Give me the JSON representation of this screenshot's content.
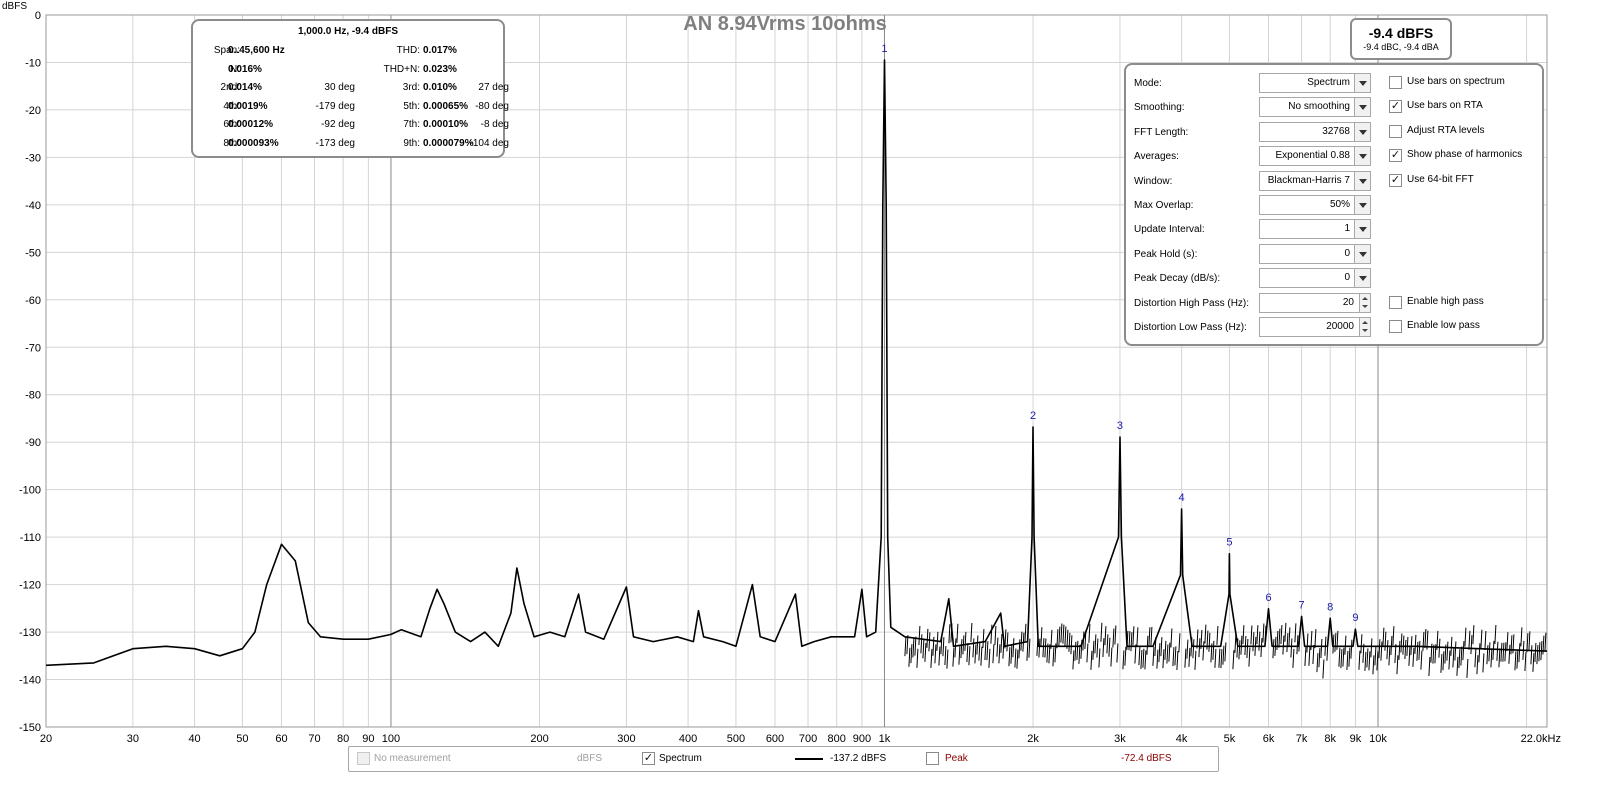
{
  "chart_title": "AN 8.94Vrms 10ohms",
  "info_box": {
    "header": "1,000.0 Hz, -9.4 dBFS",
    "rows": [
      [
        "Span:",
        "0..45,600 Hz",
        "",
        "THD:",
        "0.017%",
        ""
      ],
      [
        "N:",
        "0.016%",
        "",
        "THD+N:",
        "0.023%",
        ""
      ],
      [
        "2nd:",
        "0.014%",
        "30 deg",
        "3rd:",
        "0.010%",
        "27 deg"
      ],
      [
        "4th:",
        "0.0019%",
        "-179 deg",
        "5th:",
        "0.00065%",
        "-80 deg"
      ],
      [
        "6th:",
        "0.00012%",
        "-92 deg",
        "7th:",
        "0.00010%",
        "-8 deg"
      ],
      [
        "8th:",
        "0.000093%",
        "-173 deg",
        "9th:",
        "0.000079%",
        "-104 deg"
      ]
    ]
  },
  "level_box": {
    "main": "-9.4 dBFS",
    "sub": "-9.4 dBC, -9.4 dBA"
  },
  "settings": {
    "fields": [
      {
        "label": "Mode:",
        "value": "Spectrum",
        "kind": "combo"
      },
      {
        "label": "Smoothing:",
        "value": "No  smoothing",
        "kind": "combo"
      },
      {
        "label": "FFT Length:",
        "value": "32768",
        "kind": "combo"
      },
      {
        "label": "Averages:",
        "value": "Exponential 0.88",
        "kind": "combo"
      },
      {
        "label": "Window:",
        "value": "Blackman-Harris 7",
        "kind": "combo"
      },
      {
        "label": "Max Overlap:",
        "value": "50%",
        "kind": "combo"
      },
      {
        "label": "Update Interval:",
        "value": "1",
        "kind": "combo"
      },
      {
        "label": "Peak Hold (s):",
        "value": "0",
        "kind": "combo"
      },
      {
        "label": "Peak Decay (dB/s):",
        "value": "0",
        "kind": "combo"
      },
      {
        "label": "Distortion High Pass (Hz):",
        "value": "20",
        "kind": "spin"
      },
      {
        "label": "Distortion Low Pass (Hz):",
        "value": "20000",
        "kind": "spin"
      }
    ],
    "checkboxes": [
      {
        "label": "Use bars on spectrum",
        "checked": false,
        "slot": 0
      },
      {
        "label": "Use bars on RTA",
        "checked": true,
        "slot": 1
      },
      {
        "label": "Adjust RTA levels",
        "checked": false,
        "slot": 2
      },
      {
        "label": "Show phase of harmonics",
        "checked": true,
        "slot": 3
      },
      {
        "label": "Use 64-bit FFT",
        "checked": true,
        "slot": 4
      },
      {
        "label": "Enable high pass",
        "checked": false,
        "slot": 9
      },
      {
        "label": "Enable low pass",
        "checked": false,
        "slot": 10
      }
    ]
  },
  "legend": {
    "no_measurement": "No measurement",
    "no_measurement_unit": "dBFS",
    "spectrum_label": "Spectrum",
    "spectrum_checked": true,
    "spectrum_value": "-137.2 dBFS",
    "peak_label": "Peak",
    "peak_checked": false,
    "peak_value": "-72.4 dBFS",
    "peak_color": "#8b0000"
  },
  "chart_data": {
    "type": "line",
    "ylabel": "dBFS",
    "y_unit_label": "dBFS",
    "x_scale": "log",
    "xlim": [
      20,
      22000
    ],
    "ylim": [
      -150,
      0
    ],
    "y_ticks": [
      0,
      -10,
      -20,
      -30,
      -40,
      -50,
      -60,
      -70,
      -80,
      -90,
      -100,
      -110,
      -120,
      -130,
      -140,
      -150
    ],
    "x_ticks": [
      {
        "v": 20,
        "label": "20"
      },
      {
        "v": 30,
        "label": "30"
      },
      {
        "v": 40,
        "label": "40"
      },
      {
        "v": 50,
        "label": "50"
      },
      {
        "v": 60,
        "label": "60"
      },
      {
        "v": 70,
        "label": "70"
      },
      {
        "v": 80,
        "label": "80"
      },
      {
        "v": 90,
        "label": "90"
      },
      {
        "v": 100,
        "label": "100"
      },
      {
        "v": 200,
        "label": "200"
      },
      {
        "v": 300,
        "label": "300"
      },
      {
        "v": 400,
        "label": "400"
      },
      {
        "v": 500,
        "label": "500"
      },
      {
        "v": 600,
        "label": "600"
      },
      {
        "v": 700,
        "label": "700"
      },
      {
        "v": 800,
        "label": "800"
      },
      {
        "v": 900,
        "label": "900"
      },
      {
        "v": 1000,
        "label": "1k"
      },
      {
        "v": 2000,
        "label": "2k"
      },
      {
        "v": 3000,
        "label": "3k"
      },
      {
        "v": 4000,
        "label": "4k"
      },
      {
        "v": 5000,
        "label": "5k"
      },
      {
        "v": 6000,
        "label": "6k"
      },
      {
        "v": 7000,
        "label": "7k"
      },
      {
        "v": 8000,
        "label": "8k"
      },
      {
        "v": 9000,
        "label": "9k"
      },
      {
        "v": 10000,
        "label": "10k"
      },
      {
        "v": 22000,
        "label": "22.0kHz"
      }
    ],
    "grid": true,
    "series": [
      {
        "color": "#000000",
        "points": [
          [
            20,
            -137
          ],
          [
            25,
            -136.5
          ],
          [
            30,
            -133.5
          ],
          [
            35,
            -133
          ],
          [
            40,
            -133.5
          ],
          [
            45,
            -135
          ],
          [
            50,
            -133.5
          ],
          [
            53,
            -130
          ],
          [
            56,
            -120
          ],
          [
            60,
            -111.5
          ],
          [
            64,
            -115
          ],
          [
            68,
            -128
          ],
          [
            72,
            -131
          ],
          [
            80,
            -131.5
          ],
          [
            90,
            -131.5
          ],
          [
            100,
            -130.5
          ],
          [
            105,
            -129.5
          ],
          [
            115,
            -131
          ],
          [
            120,
            -125
          ],
          [
            124,
            -121
          ],
          [
            128,
            -124
          ],
          [
            135,
            -130
          ],
          [
            145,
            -132
          ],
          [
            155,
            -130
          ],
          [
            165,
            -133
          ],
          [
            175,
            -126
          ],
          [
            180,
            -116.5
          ],
          [
            186,
            -124
          ],
          [
            195,
            -131
          ],
          [
            210,
            -130
          ],
          [
            225,
            -131
          ],
          [
            240,
            -122
          ],
          [
            248,
            -130
          ],
          [
            270,
            -131.5
          ],
          [
            300,
            -120.5
          ],
          [
            310,
            -131
          ],
          [
            340,
            -132
          ],
          [
            380,
            -131
          ],
          [
            410,
            -132
          ],
          [
            420,
            -125.5
          ],
          [
            430,
            -131
          ],
          [
            470,
            -132
          ],
          [
            500,
            -133
          ],
          [
            540,
            -120
          ],
          [
            560,
            -131
          ],
          [
            600,
            -132
          ],
          [
            660,
            -122
          ],
          [
            680,
            -133
          ],
          [
            720,
            -132
          ],
          [
            780,
            -131
          ],
          [
            840,
            -131
          ],
          [
            870,
            -131
          ],
          [
            900,
            -121
          ],
          [
            920,
            -131
          ],
          [
            960,
            -130
          ],
          [
            985,
            -110
          ],
          [
            992,
            -40
          ],
          [
            1000,
            -9.5
          ],
          [
            1008,
            -40
          ],
          [
            1015,
            -110
          ],
          [
            1030,
            -129
          ],
          [
            1100,
            -131
          ],
          [
            1300,
            -132
          ],
          [
            1350,
            -123
          ],
          [
            1380,
            -133
          ],
          [
            1600,
            -132
          ],
          [
            1720,
            -126
          ],
          [
            1750,
            -133
          ],
          [
            1950,
            -132
          ],
          [
            1990,
            -110
          ],
          [
            2000,
            -86.8
          ],
          [
            2010,
            -110
          ],
          [
            2050,
            -133
          ],
          [
            2500,
            -133
          ],
          [
            2980,
            -110
          ],
          [
            3000,
            -88.9
          ],
          [
            3020,
            -110
          ],
          [
            3100,
            -133
          ],
          [
            3500,
            -133
          ],
          [
            3980,
            -118
          ],
          [
            4000,
            -104.1
          ],
          [
            4020,
            -118
          ],
          [
            4200,
            -133
          ],
          [
            4800,
            -133
          ],
          [
            4990,
            -122
          ],
          [
            5000,
            -113.5
          ],
          [
            5010,
            -122
          ],
          [
            5200,
            -133
          ],
          [
            5900,
            -133
          ],
          [
            6000,
            -125.1
          ],
          [
            6100,
            -133
          ],
          [
            6900,
            -133
          ],
          [
            7000,
            -126.7
          ],
          [
            7100,
            -133
          ],
          [
            7900,
            -133
          ],
          [
            8000,
            -127.1
          ],
          [
            8100,
            -133
          ],
          [
            8900,
            -133
          ],
          [
            9000,
            -129.4
          ],
          [
            9100,
            -133
          ],
          [
            12000,
            -133
          ],
          [
            16000,
            -133.5
          ],
          [
            22000,
            -134
          ]
        ]
      }
    ],
    "harmonic_markers": [
      {
        "label": "1",
        "freq": 1000,
        "db": -9.5
      },
      {
        "label": "2",
        "freq": 2000,
        "db": -86.8
      },
      {
        "label": "3",
        "freq": 3000,
        "db": -88.9
      },
      {
        "label": "4",
        "freq": 4000,
        "db": -104.1
      },
      {
        "label": "5",
        "freq": 5000,
        "db": -113.5
      },
      {
        "label": "6",
        "freq": 6000,
        "db": -125.1
      },
      {
        "label": "7",
        "freq": 7000,
        "db": -126.7
      },
      {
        "label": "8",
        "freq": 8000,
        "db": -127.1
      },
      {
        "label": "9",
        "freq": 9000,
        "db": -129.4
      }
    ]
  }
}
